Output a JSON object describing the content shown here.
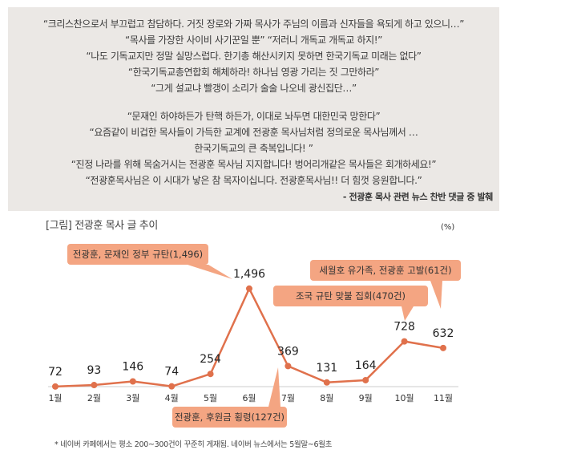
{
  "quotes": [
    "“크리스찬으로서 부끄럽고 참담하다. 거짓 장로와 가짜 목사가 주님의 이름과 신자들을 욕되게 하고 있으니…”",
    "“목사를 가장한 사이비 사기꾼일 뿐” “저러니 개독교 개독교 하지!”",
    "“나도 기독교지만 정말 실망스럽다. 한기총 해산시키지 못하면 한국기독교 미래는 없다”",
    "“한국기독교총연합회 해체하라! 하나님 영광 가리는 짓 그만하라”",
    "“그게 설교냐 빨갱이 소리가 술술 나오네 광신집단…”",
    "“문재인 하야하든가 탄핵 하든가, 이대로 놔두면 대한민국 망한다”",
    "“요즘같이 비겁한 목사들이 가득한 교계에 전광훈 목사님처럼 정의로운 목사님께서 …",
    "한국기독교의 큰 축복입니다! ”",
    "“진정 나라를 위해 목숨거시는 전광훈 목사님 지지합니다! 벙어리개같은 목사들은 회개하세요!”",
    "“전광훈목사님은 이 시대가 낳은 참 목자이십니다. 전광훈목사님!! 더 힘껏 응원합니다.”"
  ],
  "source": "- 전광훈 목사 관련 뉴스 찬반 댓글 중 발췌",
  "chart_data": {
    "type": "line",
    "title": "[그림] 전광훈 목사 글 추이",
    "unit": "(%)",
    "categories": [
      "1월",
      "2월",
      "3월",
      "4월",
      "5월",
      "6월",
      "7월",
      "8월",
      "9월",
      "10월",
      "11월"
    ],
    "values": [
      72,
      93,
      146,
      74,
      254,
      1496,
      369,
      131,
      164,
      728,
      632
    ],
    "data_labels": [
      "72",
      "93",
      "146",
      "74",
      "254",
      "1,496",
      "369",
      "131",
      "164",
      "728",
      "632"
    ],
    "annotations": [
      {
        "text": "전광훈, 문재인 정부 규탄(1,496)",
        "month": "6월"
      },
      {
        "text": "전광훈, 후원금 횡령(127건)",
        "month": "7월"
      },
      {
        "text": "조국 규탄 맞불 집회(470건)",
        "month": "10월"
      },
      {
        "text": "세월호 유가족, 전광훈 고발(61건)",
        "month": "11월"
      }
    ],
    "line_color": "#e0714c",
    "callout_color": "#f4a582",
    "note": "* 네이버 카페에서는 평소 200~300건이 꾸준히 게재됨. 네이버 뉴스에서는 5월말~6월초"
  }
}
